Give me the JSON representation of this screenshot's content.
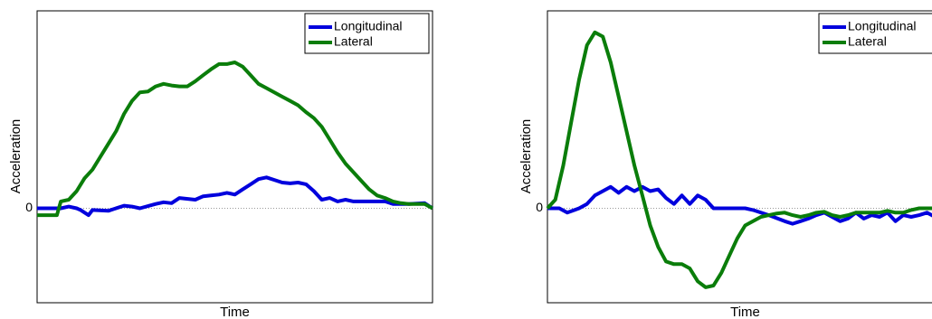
{
  "chart_data": [
    {
      "type": "line",
      "xlabel": "Time",
      "ylabel": "Acceleration",
      "yticks": [
        {
          "value": 0,
          "label": "0"
        }
      ],
      "xlim": [
        0,
        100
      ],
      "ylim": [
        -1.1,
        2.3
      ],
      "grid": false,
      "zero_line": true,
      "legend_position": "top-right",
      "series": [
        {
          "name": "Longitudinal",
          "color": "#0000dd",
          "x": [
            0,
            6,
            8,
            10,
            11,
            13,
            14,
            18,
            22,
            24,
            26,
            30,
            32,
            34,
            36,
            40,
            42,
            44,
            46,
            48,
            50,
            52,
            54,
            56,
            58,
            60,
            62,
            64,
            66,
            68,
            70,
            72,
            74,
            76,
            78,
            80,
            84,
            88,
            90,
            94,
            98,
            100
          ],
          "y": [
            0.0,
            0.0,
            0.02,
            0.0,
            -0.02,
            -0.08,
            -0.02,
            -0.03,
            0.03,
            0.02,
            0.0,
            0.05,
            0.07,
            0.06,
            0.12,
            0.1,
            0.14,
            0.15,
            0.16,
            0.18,
            0.16,
            0.22,
            0.28,
            0.34,
            0.36,
            0.33,
            0.3,
            0.29,
            0.3,
            0.28,
            0.2,
            0.1,
            0.12,
            0.08,
            0.1,
            0.08,
            0.08,
            0.08,
            0.05,
            0.05,
            0.06,
            0.0
          ]
        },
        {
          "name": "Lateral",
          "color": "#0a7d0a",
          "x": [
            0,
            5,
            6,
            8,
            10,
            12,
            14,
            16,
            18,
            20,
            22,
            24,
            26,
            28,
            30,
            32,
            34,
            36,
            38,
            40,
            42,
            44,
            46,
            48,
            50,
            52,
            54,
            56,
            58,
            60,
            62,
            64,
            66,
            68,
            70,
            72,
            74,
            76,
            78,
            80,
            82,
            84,
            86,
            88,
            90,
            92,
            94,
            96,
            98,
            100
          ],
          "y": [
            -0.08,
            -0.08,
            0.08,
            0.1,
            0.2,
            0.35,
            0.45,
            0.6,
            0.75,
            0.9,
            1.1,
            1.25,
            1.35,
            1.36,
            1.42,
            1.45,
            1.43,
            1.42,
            1.42,
            1.48,
            1.55,
            1.62,
            1.68,
            1.68,
            1.7,
            1.65,
            1.55,
            1.45,
            1.4,
            1.35,
            1.3,
            1.25,
            1.2,
            1.12,
            1.05,
            0.95,
            0.8,
            0.65,
            0.52,
            0.42,
            0.32,
            0.22,
            0.15,
            0.12,
            0.08,
            0.06,
            0.05,
            0.05,
            0.05,
            0.0
          ]
        }
      ]
    },
    {
      "type": "line",
      "xlabel": "Time",
      "ylabel": "Acceleration",
      "yticks": [
        {
          "value": 0,
          "label": "0"
        }
      ],
      "xlim": [
        0,
        100
      ],
      "ylim": [
        -1.1,
        2.3
      ],
      "grid": false,
      "zero_line": true,
      "legend_position": "top-right",
      "series": [
        {
          "name": "Longitudinal",
          "color": "#0000dd",
          "x": [
            0,
            3,
            5,
            8,
            10,
            12,
            14,
            16,
            18,
            20,
            22,
            24,
            26,
            28,
            30,
            32,
            34,
            36,
            38,
            40,
            42,
            44,
            46,
            48,
            50,
            52,
            56,
            60,
            62,
            64,
            66,
            68,
            70,
            72,
            74,
            76,
            78,
            80,
            82,
            84,
            86,
            88,
            90,
            92,
            94,
            96,
            98,
            100
          ],
          "y": [
            0.0,
            0.0,
            -0.05,
            0.0,
            0.05,
            0.15,
            0.2,
            0.25,
            0.18,
            0.25,
            0.2,
            0.25,
            0.2,
            0.22,
            0.12,
            0.05,
            0.15,
            0.05,
            0.15,
            0.1,
            0.0,
            0.0,
            0.0,
            0.0,
            0.0,
            -0.02,
            -0.08,
            -0.15,
            -0.18,
            -0.15,
            -0.12,
            -0.08,
            -0.05,
            -0.1,
            -0.15,
            -0.12,
            -0.05,
            -0.12,
            -0.08,
            -0.1,
            -0.05,
            -0.15,
            -0.08,
            -0.1,
            -0.08,
            -0.05,
            -0.1,
            -0.1
          ]
        },
        {
          "name": "Lateral",
          "color": "#0a7d0a",
          "x": [
            0,
            2,
            4,
            6,
            8,
            10,
            12,
            14,
            16,
            18,
            20,
            22,
            24,
            26,
            28,
            30,
            32,
            34,
            36,
            38,
            40,
            42,
            44,
            46,
            48,
            50,
            52,
            54,
            56,
            58,
            60,
            62,
            64,
            66,
            68,
            70,
            72,
            74,
            76,
            78,
            80,
            82,
            84,
            86,
            88,
            90,
            92,
            94,
            96,
            98,
            100
          ],
          "y": [
            0.0,
            0.1,
            0.5,
            1.0,
            1.5,
            1.9,
            2.05,
            2.0,
            1.7,
            1.3,
            0.9,
            0.5,
            0.15,
            -0.2,
            -0.45,
            -0.62,
            -0.65,
            -0.65,
            -0.7,
            -0.85,
            -0.92,
            -0.9,
            -0.75,
            -0.55,
            -0.35,
            -0.2,
            -0.15,
            -0.1,
            -0.08,
            -0.06,
            -0.05,
            -0.08,
            -0.1,
            -0.08,
            -0.05,
            -0.04,
            -0.08,
            -0.1,
            -0.08,
            -0.05,
            -0.05,
            -0.05,
            -0.05,
            -0.03,
            -0.05,
            -0.05,
            -0.02,
            0.0,
            0.0,
            0.0,
            0.0
          ]
        }
      ]
    }
  ]
}
